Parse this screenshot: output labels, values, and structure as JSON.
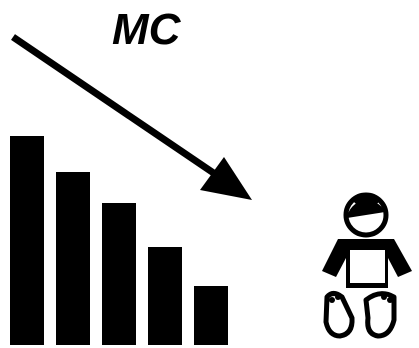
{
  "label": "MC",
  "ink_color": "#000000",
  "background_color": "#ffffff",
  "arrow": {
    "direction": "down-right",
    "icon": "arrow-down-right-icon"
  },
  "bars": {
    "icon": "decreasing-bars-icon",
    "count": 5,
    "relative_heights": [
      1.0,
      0.83,
      0.68,
      0.47,
      0.28
    ]
  },
  "figure": {
    "icon": "baby-icon"
  }
}
